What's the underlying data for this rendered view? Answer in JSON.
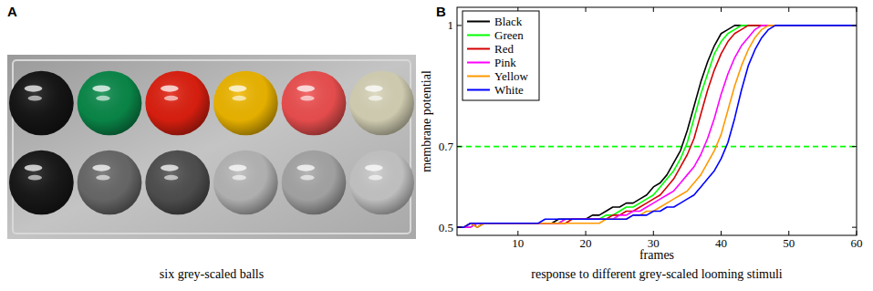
{
  "panel_a": {
    "label": "A",
    "caption": "six grey-scaled balls",
    "top_colors": [
      "#151515",
      "#0a8a4a",
      "#e02010",
      "#f0b800",
      "#f05050",
      "#d8d4b8"
    ],
    "bottom_colors": [
      "#181818",
      "#6a6a6a",
      "#505050",
      "#b8b8b8",
      "#a8a8a8",
      "#c8c8c8"
    ]
  },
  "chart_data": {
    "type": "line",
    "label": "B",
    "caption": "response to different grey-scaled looming stimuli",
    "x_label": "frames",
    "y_label": "membrane potential",
    "x": [
      1,
      2,
      3,
      4,
      5,
      6,
      7,
      8,
      9,
      10,
      11,
      12,
      13,
      14,
      15,
      16,
      17,
      18,
      19,
      20,
      21,
      22,
      23,
      24,
      25,
      26,
      27,
      28,
      29,
      30,
      31,
      32,
      33,
      34,
      35,
      36,
      37,
      38,
      39,
      40,
      41,
      42,
      43,
      44,
      45,
      46,
      47,
      48,
      49,
      50,
      51,
      52,
      53,
      54,
      55,
      56,
      57,
      58,
      59,
      60
    ],
    "xlim": [
      1,
      60
    ],
    "xticks": [
      10,
      20,
      30,
      40,
      50,
      60
    ],
    "ylim": [
      0.48,
      1.045
    ],
    "yticks": [
      0.5,
      0.7,
      1
    ],
    "grid": false,
    "legend": "upper-left",
    "reference_line": {
      "value": 0.7,
      "color": "#00ff00",
      "line_style": "dashed"
    },
    "series": [
      {
        "name": "Black",
        "color": "#000000",
        "values": [
          0.5,
          0.5,
          0.51,
          0.5,
          0.51,
          0.51,
          0.51,
          0.51,
          0.51,
          0.51,
          0.51,
          0.51,
          0.51,
          0.51,
          0.51,
          0.52,
          0.52,
          0.52,
          0.52,
          0.52,
          0.53,
          0.53,
          0.54,
          0.55,
          0.55,
          0.56,
          0.56,
          0.57,
          0.58,
          0.6,
          0.61,
          0.63,
          0.66,
          0.69,
          0.74,
          0.8,
          0.86,
          0.91,
          0.95,
          0.98,
          0.99,
          1.0,
          1.0,
          1.0,
          1.0,
          1.0,
          1.0,
          1.0,
          1.0,
          1.0,
          1.0,
          1.0,
          1.0,
          1.0,
          1.0,
          1.0,
          1.0,
          1.0,
          1.0,
          1.0
        ]
      },
      {
        "name": "Green",
        "color": "#00ff00",
        "values": [
          0.5,
          0.5,
          0.5,
          0.51,
          0.51,
          0.51,
          0.51,
          0.51,
          0.51,
          0.51,
          0.51,
          0.51,
          0.51,
          0.51,
          0.51,
          0.51,
          0.52,
          0.52,
          0.52,
          0.52,
          0.52,
          0.52,
          0.53,
          0.53,
          0.54,
          0.55,
          0.55,
          0.56,
          0.57,
          0.58,
          0.6,
          0.62,
          0.64,
          0.67,
          0.71,
          0.77,
          0.83,
          0.88,
          0.93,
          0.96,
          0.98,
          0.99,
          1.0,
          1.0,
          1.0,
          1.0,
          1.0,
          1.0,
          1.0,
          1.0,
          1.0,
          1.0,
          1.0,
          1.0,
          1.0,
          1.0,
          1.0,
          1.0,
          1.0,
          1.0
        ]
      },
      {
        "name": "Red",
        "color": "#d40000",
        "values": [
          0.5,
          0.5,
          0.51,
          0.51,
          0.51,
          0.51,
          0.51,
          0.51,
          0.51,
          0.51,
          0.51,
          0.51,
          0.51,
          0.51,
          0.51,
          0.51,
          0.51,
          0.52,
          0.52,
          0.52,
          0.52,
          0.52,
          0.52,
          0.53,
          0.53,
          0.54,
          0.54,
          0.55,
          0.56,
          0.57,
          0.58,
          0.6,
          0.62,
          0.65,
          0.68,
          0.72,
          0.78,
          0.84,
          0.89,
          0.93,
          0.96,
          0.98,
          0.99,
          1.0,
          1.0,
          1.0,
          1.0,
          1.0,
          1.0,
          1.0,
          1.0,
          1.0,
          1.0,
          1.0,
          1.0,
          1.0,
          1.0,
          1.0,
          1.0,
          1.0
        ]
      },
      {
        "name": "Pink",
        "color": "#ff00ff",
        "values": [
          0.5,
          0.5,
          0.5,
          0.51,
          0.51,
          0.51,
          0.51,
          0.51,
          0.51,
          0.51,
          0.51,
          0.51,
          0.51,
          0.51,
          0.51,
          0.51,
          0.52,
          0.52,
          0.52,
          0.52,
          0.52,
          0.52,
          0.52,
          0.52,
          0.53,
          0.53,
          0.54,
          0.54,
          0.55,
          0.56,
          0.57,
          0.58,
          0.59,
          0.61,
          0.63,
          0.65,
          0.68,
          0.72,
          0.77,
          0.83,
          0.88,
          0.92,
          0.95,
          0.97,
          0.99,
          1.0,
          1.0,
          1.0,
          1.0,
          1.0,
          1.0,
          1.0,
          1.0,
          1.0,
          1.0,
          1.0,
          1.0,
          1.0,
          1.0,
          1.0
        ]
      },
      {
        "name": "Yellow",
        "color": "#ff9900",
        "values": [
          0.5,
          0.5,
          0.51,
          0.5,
          0.51,
          0.51,
          0.51,
          0.51,
          0.51,
          0.51,
          0.51,
          0.51,
          0.51,
          0.51,
          0.51,
          0.51,
          0.51,
          0.51,
          0.51,
          0.51,
          0.51,
          0.51,
          0.52,
          0.52,
          0.52,
          0.52,
          0.53,
          0.53,
          0.54,
          0.54,
          0.55,
          0.56,
          0.57,
          0.58,
          0.59,
          0.61,
          0.63,
          0.66,
          0.69,
          0.73,
          0.79,
          0.85,
          0.9,
          0.94,
          0.97,
          0.99,
          1.0,
          1.0,
          1.0,
          1.0,
          1.0,
          1.0,
          1.0,
          1.0,
          1.0,
          1.0,
          1.0,
          1.0,
          1.0,
          1.0
        ]
      },
      {
        "name": "White",
        "color": "#0000ff",
        "values": [
          0.5,
          0.5,
          0.51,
          0.51,
          0.51,
          0.51,
          0.51,
          0.51,
          0.51,
          0.51,
          0.51,
          0.51,
          0.51,
          0.52,
          0.52,
          0.52,
          0.52,
          0.52,
          0.52,
          0.52,
          0.52,
          0.52,
          0.52,
          0.52,
          0.52,
          0.52,
          0.53,
          0.53,
          0.53,
          0.54,
          0.54,
          0.55,
          0.55,
          0.56,
          0.57,
          0.58,
          0.6,
          0.62,
          0.64,
          0.67,
          0.71,
          0.77,
          0.84,
          0.9,
          0.94,
          0.97,
          0.99,
          1.0,
          1.0,
          1.0,
          1.0,
          1.0,
          1.0,
          1.0,
          1.0,
          1.0,
          1.0,
          1.0,
          1.0,
          1.0
        ]
      }
    ]
  }
}
